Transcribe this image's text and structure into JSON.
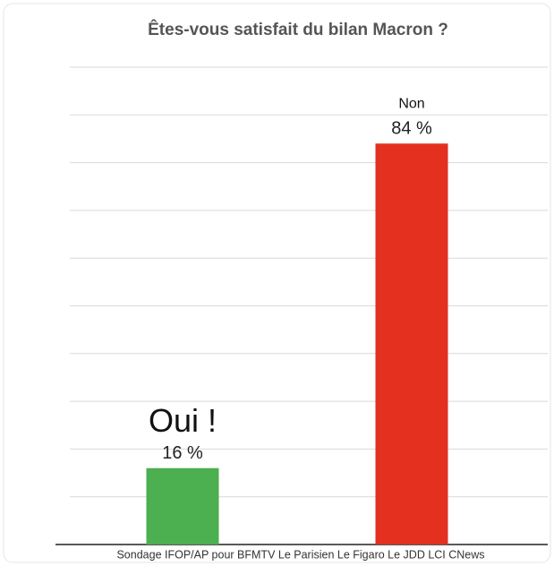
{
  "chart_data": {
    "type": "bar",
    "title": "Êtes-vous satisfait du bilan Macron ?",
    "categories": [
      "Oui !",
      "Non"
    ],
    "values": [
      16,
      84
    ],
    "value_labels": [
      "16 %",
      "84 %"
    ],
    "colors": [
      "#4caf50",
      "#e3301f"
    ],
    "ylim": [
      0,
      100
    ],
    "source": "Sondage IFOP/AP pour BFMTV Le Parisien Le Figaro Le JDD LCI CNews"
  }
}
